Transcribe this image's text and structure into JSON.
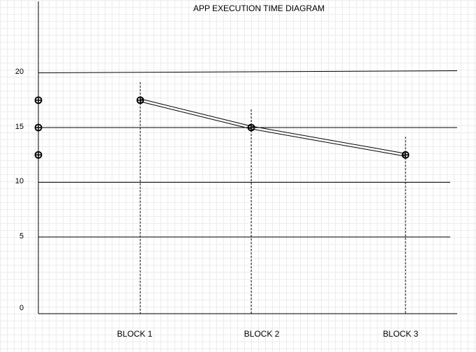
{
  "chart_data": {
    "type": "line",
    "title": "APP EXECUTION TIME DIAGRAM",
    "categories": [
      "BLOCK 1",
      "BLOCK 2",
      "BLOCK 3"
    ],
    "series": [
      {
        "values": [
          17.5,
          15,
          12.5
        ]
      }
    ],
    "y_axis_markers": [
      17.5,
      15,
      12.5
    ],
    "yticks": [
      "0",
      "5",
      "10",
      "15",
      "20"
    ],
    "ylim": [
      0,
      22
    ],
    "xlabel": "",
    "ylabel": "",
    "grid": true,
    "colors": {
      "line": "#000000",
      "grid": "#ececec"
    }
  }
}
